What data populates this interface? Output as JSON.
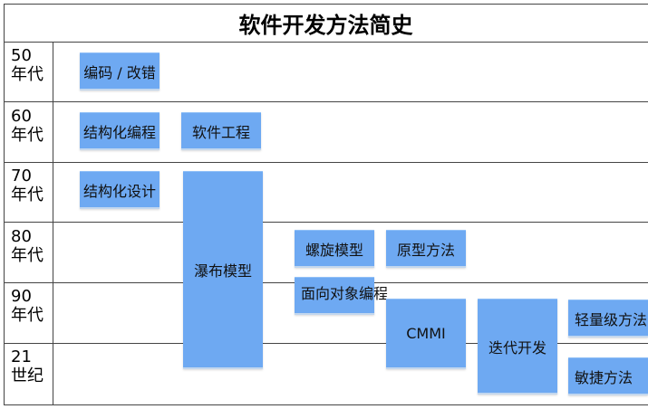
{
  "title": "软件开发方法简史",
  "eras": [
    {
      "year": "50",
      "unit": "年代"
    },
    {
      "year": "60",
      "unit": "年代"
    },
    {
      "year": "70",
      "unit": "年代"
    },
    {
      "year": "80",
      "unit": "年代"
    },
    {
      "year": "90",
      "unit": "年代"
    },
    {
      "year": "21",
      "unit": "世纪"
    }
  ],
  "methods": {
    "code_fix": "编码 / 改错",
    "structured_programming": "结构化编程",
    "software_engineering": "软件工程",
    "structured_design": "结构化设计",
    "waterfall": "瀑布模型",
    "spiral": "螺旋模型",
    "prototype": "原型方法",
    "oop": "面向对象编程",
    "cmmi": "CMMI",
    "iterative": "迭代开发",
    "lightweight": "轻量级方法",
    "agile": "敏捷方法"
  },
  "colors": {
    "box_fill": "#6ea9f2",
    "grid_line": "#444444"
  }
}
